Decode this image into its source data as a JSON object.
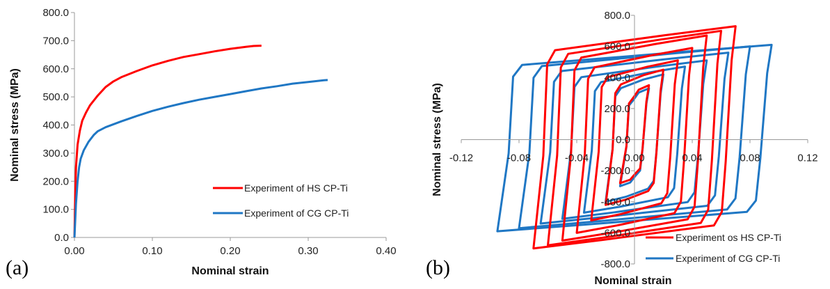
{
  "panels": [
    {
      "label": "(a)"
    },
    {
      "label": "(b)"
    }
  ],
  "chart_data": [
    {
      "type": "line",
      "xlabel": "Nominal strain",
      "ylabel": "Nominal stress (MPa)",
      "xlim": [
        0,
        0.4
      ],
      "ylim": [
        0,
        800
      ],
      "x_ticks": [
        "0.00",
        "0.10",
        "0.20",
        "0.30",
        "0.40"
      ],
      "y_ticks": [
        "0.0",
        "100.0",
        "200.0",
        "300.0",
        "400.0",
        "500.0",
        "600.0",
        "700.0",
        "800.0"
      ],
      "grid": false,
      "legend_position": "bottom-right",
      "series": [
        {
          "name": "Experiment of HS CP-Ti",
          "color": "#ff0000",
          "points": [
            [
              0,
              0
            ],
            [
              0.001,
              150
            ],
            [
              0.002,
              250
            ],
            [
              0.004,
              330
            ],
            [
              0.007,
              380
            ],
            [
              0.01,
              415
            ],
            [
              0.015,
              445
            ],
            [
              0.02,
              470
            ],
            [
              0.03,
              505
            ],
            [
              0.04,
              535
            ],
            [
              0.05,
              555
            ],
            [
              0.06,
              570
            ],
            [
              0.08,
              592
            ],
            [
              0.1,
              612
            ],
            [
              0.12,
              628
            ],
            [
              0.14,
              642
            ],
            [
              0.16,
              652
            ],
            [
              0.18,
              662
            ],
            [
              0.2,
              671
            ],
            [
              0.22,
              678
            ],
            [
              0.23,
              681
            ],
            [
              0.24,
              682
            ]
          ]
        },
        {
          "name": "Experiment of CG CP-Ti",
          "color": "#1f77c4",
          "points": [
            [
              0,
              0
            ],
            [
              0.002,
              120
            ],
            [
              0.004,
              200
            ],
            [
              0.006,
              250
            ],
            [
              0.008,
              280
            ],
            [
              0.012,
              310
            ],
            [
              0.018,
              340
            ],
            [
              0.025,
              365
            ],
            [
              0.03,
              378
            ],
            [
              0.04,
              392
            ],
            [
              0.06,
              413
            ],
            [
              0.08,
              432
            ],
            [
              0.1,
              450
            ],
            [
              0.12,
              465
            ],
            [
              0.14,
              478
            ],
            [
              0.16,
              490
            ],
            [
              0.18,
              500
            ],
            [
              0.2,
              510
            ],
            [
              0.22,
              520
            ],
            [
              0.24,
              530
            ],
            [
              0.26,
              538
            ],
            [
              0.28,
              547
            ],
            [
              0.3,
              553
            ],
            [
              0.32,
              559
            ],
            [
              0.325,
              560
            ]
          ]
        }
      ]
    },
    {
      "type": "line",
      "xlabel": "Nominal strain",
      "ylabel": "Nominal stress (MPa)",
      "xlim": [
        -0.12,
        0.12
      ],
      "ylim": [
        -800,
        800
      ],
      "x_ticks": [
        "-0.12",
        "-0.08",
        "-0.04",
        "0.00",
        "0.04",
        "0.08",
        "0.12"
      ],
      "y_ticks": [
        "800.0",
        "600.0",
        "400.0",
        "200.0",
        "0.0",
        "-200.0",
        "-400.0",
        "-600.0",
        "-800.0"
      ],
      "grid": false,
      "legend_position": "bottom-right",
      "series": [
        {
          "name": "Experiment os HS CP-Ti",
          "color": "#ff0000",
          "loops": [
            {
              "amp": 0.01,
              "peak_pos": 350,
              "peak_neg": -280
            },
            {
              "amp": 0.02,
              "peak_pos": 450,
              "peak_neg": -420
            },
            {
              "amp": 0.03,
              "peak_pos": 510,
              "peak_neg": -520
            },
            {
              "amp": 0.04,
              "peak_pos": 590,
              "peak_neg": -600
            },
            {
              "amp": 0.05,
              "peak_pos": 670,
              "peak_neg": -650
            },
            {
              "amp": 0.06,
              "peak_pos": 700,
              "peak_neg": -680
            },
            {
              "amp": 0.07,
              "peak_pos": 730,
              "peak_neg": -700
            }
          ]
        },
        {
          "name": "Experiment of CG CP-Ti",
          "color": "#1f77c4",
          "loops": [
            {
              "amp": 0.01,
              "peak_pos": 330,
              "peak_neg": -300
            },
            {
              "amp": 0.02,
              "peak_pos": 420,
              "peak_neg": -400
            },
            {
              "amp": 0.035,
              "peak_pos": 470,
              "peak_neg": -470
            },
            {
              "amp": 0.05,
              "peak_pos": 510,
              "peak_neg": -510
            },
            {
              "amp": 0.065,
              "peak_pos": 560,
              "peak_neg": -540
            },
            {
              "amp": 0.08,
              "peak_pos": 600,
              "peak_neg": -570
            },
            {
              "amp": 0.095,
              "peak_pos": 610,
              "peak_neg": -590
            }
          ]
        }
      ]
    }
  ]
}
